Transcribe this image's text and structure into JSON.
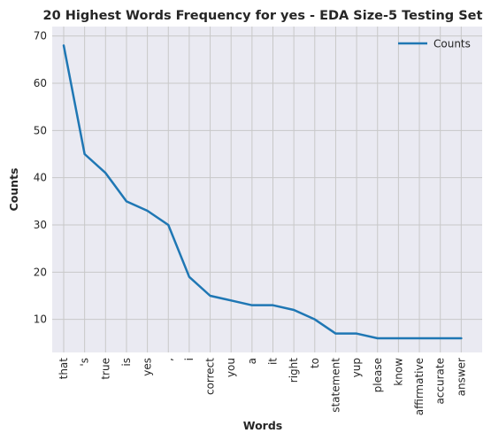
{
  "chart_data": {
    "type": "line",
    "title": "20 Highest Words Frequency for yes - EDA Size-5 Testing Set",
    "xlabel": "Words",
    "ylabel": "Counts",
    "categories": [
      "that",
      "'s",
      "true",
      "is",
      "yes",
      ",",
      "i",
      "correct",
      "you",
      "a",
      "it",
      "right",
      "to",
      "statement",
      "yup",
      "please",
      "know",
      "affirmative",
      "accurate",
      "answer"
    ],
    "series": [
      {
        "name": "Counts",
        "values": [
          68,
          45,
          41,
          35,
          33,
          30,
          19,
          15,
          14,
          13,
          13,
          12,
          10,
          7,
          7,
          6,
          6,
          6,
          6,
          6
        ]
      }
    ],
    "yticks": [
      10,
      20,
      30,
      40,
      50,
      60,
      70
    ],
    "ylim": [
      3,
      72
    ],
    "grid": true,
    "legend_position": "top-right",
    "colors": {
      "line": "#1f77b4",
      "grid": "#c8c8c8",
      "background": "#eaeaf2"
    }
  }
}
